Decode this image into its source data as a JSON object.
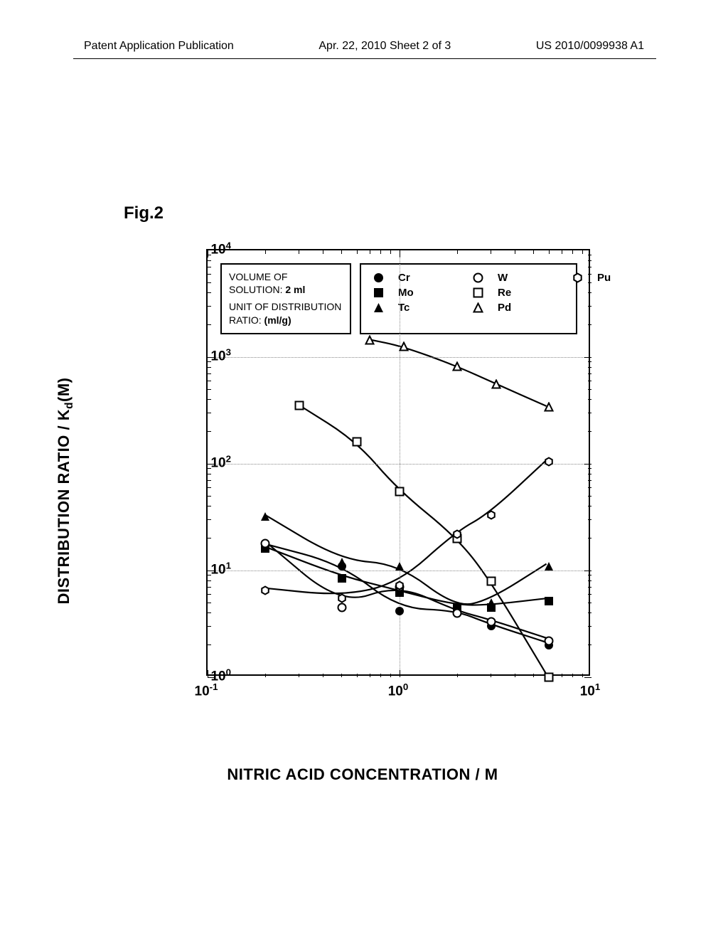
{
  "header": {
    "left": "Patent Application Publication",
    "center": "Apr. 22, 2010  Sheet 2 of 3",
    "right": "US 2010/0099938 A1"
  },
  "figure_label": "Fig.2",
  "chart": {
    "type": "scatter-line-loglog",
    "xlabel": "NITRIC ACID CONCENTRATION / M",
    "ylabel_prefix": "DISTRIBUTION RATIO / K",
    "ylabel_sub": "d",
    "ylabel_suffix": "(M)",
    "xlim": [
      0.1,
      10
    ],
    "ylim": [
      1,
      10000
    ],
    "x_ticks": [
      0.1,
      1,
      10
    ],
    "x_tick_labels": [
      "10⁻¹",
      "10⁰",
      "10¹"
    ],
    "y_ticks": [
      1,
      10,
      100,
      1000,
      10000
    ],
    "y_tick_labels": [
      "10⁰",
      "10¹",
      "10²",
      "10³",
      "10⁴"
    ],
    "background_color": "#ffffff",
    "grid_color": "#888888",
    "line_color": "#000000",
    "line_width": 2.2,
    "marker_size": 14,
    "legend_condition": {
      "line1": "VOLUME OF",
      "line2_prefix": "SOLUTION: ",
      "line2_bold": "2 ml",
      "line3": "UNIT OF DISTRIBUTION",
      "line4_prefix": "RATIO: ",
      "line4_bold": "(ml/g)"
    },
    "series": [
      {
        "name": "Cr",
        "marker": "circle-filled",
        "points": [
          [
            0.2,
            17
          ],
          [
            0.5,
            11
          ],
          [
            1,
            4.2
          ],
          [
            2,
            4.0
          ],
          [
            3,
            3.0
          ],
          [
            6,
            2.0
          ]
        ]
      },
      {
        "name": "Mo",
        "marker": "square-filled",
        "points": [
          [
            0.2,
            16
          ],
          [
            0.5,
            8.5
          ],
          [
            1,
            6.2
          ],
          [
            2,
            4.5
          ],
          [
            3,
            4.5
          ],
          [
            6,
            5.2
          ]
        ]
      },
      {
        "name": "Tc",
        "marker": "triangle-filled",
        "points": [
          [
            0.2,
            32
          ],
          [
            0.5,
            12
          ],
          [
            1,
            11
          ],
          [
            2,
            4.3
          ],
          [
            3,
            5
          ],
          [
            6,
            11
          ]
        ]
      },
      {
        "name": "W",
        "marker": "circle-open",
        "points": [
          [
            0.2,
            18
          ],
          [
            0.5,
            4.5
          ],
          [
            1,
            7
          ],
          [
            2,
            4.0
          ],
          [
            3,
            3.3
          ],
          [
            6,
            2.2
          ]
        ]
      },
      {
        "name": "Re",
        "marker": "square-open",
        "points": [
          [
            0.3,
            350
          ],
          [
            0.6,
            160
          ],
          [
            1,
            55
          ],
          [
            2,
            20
          ],
          [
            3,
            8
          ],
          [
            6,
            1.0
          ]
        ]
      },
      {
        "name": "Pd",
        "marker": "triangle-open",
        "points": [
          [
            0.7,
            1450
          ],
          [
            1.05,
            1250
          ],
          [
            2,
            820
          ],
          [
            3.2,
            560
          ],
          [
            6,
            340
          ]
        ]
      },
      {
        "name": "Pu",
        "marker": "hexagon-open",
        "points": [
          [
            0.2,
            6.5
          ],
          [
            0.5,
            5.5
          ],
          [
            1,
            7.2
          ],
          [
            2,
            22
          ],
          [
            3,
            33
          ],
          [
            6,
            105
          ]
        ]
      }
    ]
  }
}
